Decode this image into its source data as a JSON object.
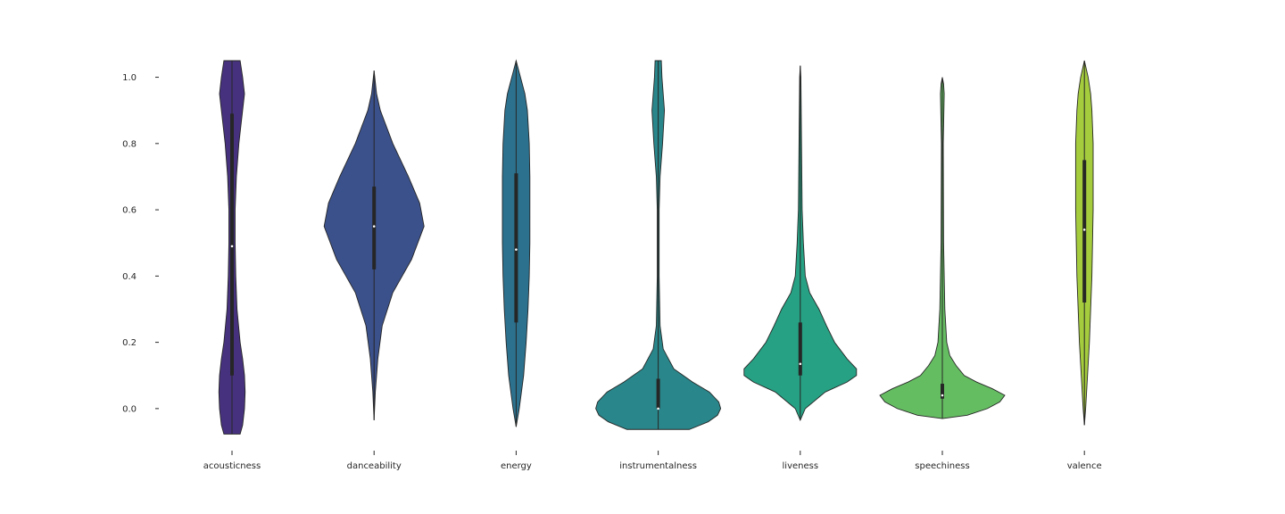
{
  "chart_data": {
    "type": "violin",
    "title": "",
    "xlabel": "",
    "ylabel": "",
    "ylim": [
      -0.1,
      1.05
    ],
    "yticks": [
      0.0,
      0.2,
      0.4,
      0.6,
      0.8,
      1.0
    ],
    "ytick_labels": [
      "0.0",
      "0.2",
      "0.4",
      "0.6",
      "0.8",
      "1.0"
    ],
    "grid": false,
    "legend": "none",
    "categories": [
      "acousticness",
      "danceability",
      "energy",
      "instrumentalness",
      "liveness",
      "speechiness",
      "valence"
    ],
    "series": [
      {
        "category": "acousticness",
        "color": "#46317e",
        "range": [
          -0.077,
          1.05
        ],
        "quartiles": [
          0.1,
          0.49,
          0.89
        ],
        "median": 0.49,
        "density": [
          [
            -0.077,
            0.13
          ],
          [
            -0.05,
            0.17
          ],
          [
            0.0,
            0.2
          ],
          [
            0.05,
            0.21
          ],
          [
            0.1,
            0.2
          ],
          [
            0.15,
            0.17
          ],
          [
            0.2,
            0.13
          ],
          [
            0.3,
            0.08
          ],
          [
            0.4,
            0.06
          ],
          [
            0.5,
            0.05
          ],
          [
            0.6,
            0.05
          ],
          [
            0.7,
            0.07
          ],
          [
            0.8,
            0.11
          ],
          [
            0.9,
            0.17
          ],
          [
            0.95,
            0.2
          ],
          [
            1.0,
            0.17
          ],
          [
            1.05,
            0.13
          ]
        ]
      },
      {
        "category": "danceability",
        "color": "#3b518b",
        "range": [
          -0.035,
          1.02
        ],
        "quartiles": [
          0.42,
          0.55,
          0.67
        ],
        "median": 0.55,
        "density": [
          [
            -0.035,
            0.0
          ],
          [
            0.05,
            0.02
          ],
          [
            0.15,
            0.06
          ],
          [
            0.25,
            0.13
          ],
          [
            0.35,
            0.3
          ],
          [
            0.45,
            0.6
          ],
          [
            0.55,
            0.8
          ],
          [
            0.62,
            0.73
          ],
          [
            0.7,
            0.55
          ],
          [
            0.8,
            0.3
          ],
          [
            0.9,
            0.1
          ],
          [
            0.95,
            0.04
          ],
          [
            1.02,
            0.0
          ]
        ]
      },
      {
        "category": "energy",
        "color": "#2c718e",
        "range": [
          -0.055,
          1.05
        ],
        "quartiles": [
          0.26,
          0.48,
          0.71
        ],
        "median": 0.48,
        "density": [
          [
            -0.055,
            0.0
          ],
          [
            0.0,
            0.05
          ],
          [
            0.1,
            0.12
          ],
          [
            0.2,
            0.16
          ],
          [
            0.3,
            0.19
          ],
          [
            0.4,
            0.21
          ],
          [
            0.5,
            0.22
          ],
          [
            0.6,
            0.22
          ],
          [
            0.7,
            0.22
          ],
          [
            0.8,
            0.21
          ],
          [
            0.9,
            0.18
          ],
          [
            0.95,
            0.14
          ],
          [
            1.0,
            0.07
          ],
          [
            1.05,
            0.0
          ]
        ]
      },
      {
        "category": "instrumentalness",
        "color": "#29868a",
        "range": [
          -0.063,
          1.05
        ],
        "quartiles": [
          0.0,
          0.0,
          0.09
        ],
        "median": 0.0,
        "density": [
          [
            -0.063,
            0.5
          ],
          [
            -0.04,
            0.8
          ],
          [
            -0.02,
            0.95
          ],
          [
            0.0,
            1.0
          ],
          [
            0.02,
            0.97
          ],
          [
            0.05,
            0.82
          ],
          [
            0.08,
            0.55
          ],
          [
            0.12,
            0.25
          ],
          [
            0.18,
            0.08
          ],
          [
            0.25,
            0.03
          ],
          [
            0.4,
            0.015
          ],
          [
            0.6,
            0.015
          ],
          [
            0.7,
            0.03
          ],
          [
            0.8,
            0.07
          ],
          [
            0.9,
            0.1
          ],
          [
            0.95,
            0.08
          ],
          [
            1.0,
            0.06
          ],
          [
            1.05,
            0.05
          ]
        ]
      },
      {
        "category": "liveness",
        "color": "#26a183",
        "range": [
          -0.035,
          1.035
        ],
        "quartiles": [
          0.1,
          0.135,
          0.26
        ],
        "median": 0.135,
        "density": [
          [
            -0.035,
            0.0
          ],
          [
            0.0,
            0.08
          ],
          [
            0.05,
            0.4
          ],
          [
            0.08,
            0.75
          ],
          [
            0.1,
            0.9
          ],
          [
            0.12,
            0.9
          ],
          [
            0.15,
            0.75
          ],
          [
            0.2,
            0.55
          ],
          [
            0.25,
            0.42
          ],
          [
            0.3,
            0.3
          ],
          [
            0.35,
            0.15
          ],
          [
            0.4,
            0.08
          ],
          [
            0.5,
            0.05
          ],
          [
            0.6,
            0.03
          ],
          [
            0.8,
            0.02
          ],
          [
            1.0,
            0.01
          ],
          [
            1.035,
            0.0
          ]
        ]
      },
      {
        "category": "speechiness",
        "color": "#65bd62",
        "range": [
          -0.03,
          1.0
        ],
        "quartiles": [
          0.03,
          0.04,
          0.075
        ],
        "median": 0.04,
        "density": [
          [
            -0.03,
            0.0
          ],
          [
            -0.02,
            0.4
          ],
          [
            0.0,
            0.72
          ],
          [
            0.02,
            0.92
          ],
          [
            0.04,
            1.0
          ],
          [
            0.06,
            0.8
          ],
          [
            0.08,
            0.55
          ],
          [
            0.1,
            0.35
          ],
          [
            0.13,
            0.22
          ],
          [
            0.16,
            0.12
          ],
          [
            0.2,
            0.07
          ],
          [
            0.3,
            0.04
          ],
          [
            0.5,
            0.02
          ],
          [
            0.8,
            0.015
          ],
          [
            0.9,
            0.025
          ],
          [
            0.95,
            0.03
          ],
          [
            0.98,
            0.02
          ],
          [
            1.0,
            0.0
          ]
        ]
      },
      {
        "category": "valence",
        "color": "#a5cc3d",
        "range": [
          -0.05,
          1.05
        ],
        "quartiles": [
          0.32,
          0.54,
          0.75
        ],
        "median": 0.54,
        "density": [
          [
            -0.05,
            0.0
          ],
          [
            0.0,
            0.02
          ],
          [
            0.1,
            0.05
          ],
          [
            0.2,
            0.08
          ],
          [
            0.3,
            0.1
          ],
          [
            0.4,
            0.12
          ],
          [
            0.5,
            0.13
          ],
          [
            0.6,
            0.14
          ],
          [
            0.7,
            0.14
          ],
          [
            0.8,
            0.14
          ],
          [
            0.9,
            0.12
          ],
          [
            0.95,
            0.1
          ],
          [
            1.0,
            0.06
          ],
          [
            1.05,
            0.0
          ]
        ]
      }
    ]
  }
}
